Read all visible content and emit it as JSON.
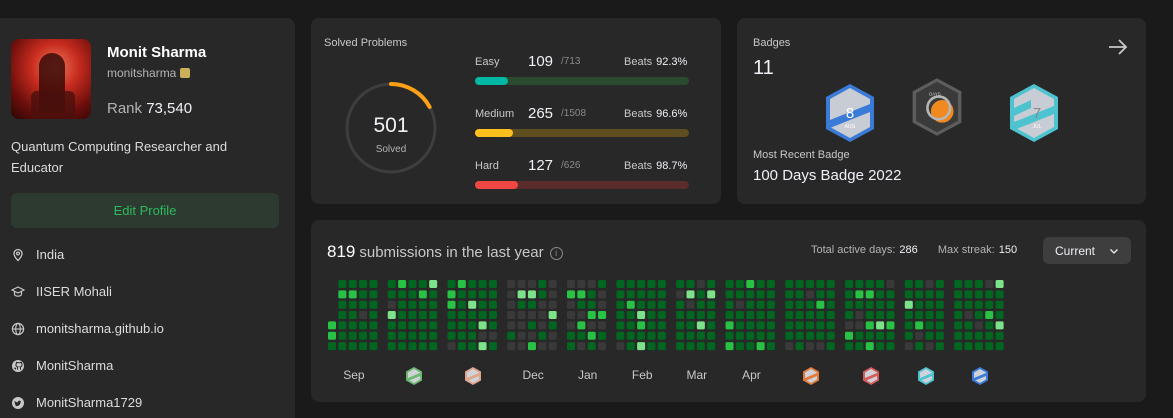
{
  "profile": {
    "name": "Monit Sharma",
    "username": "monitsharma",
    "rank_label": "Rank",
    "rank_value": "73,540",
    "bio": "Quantum Computing Researcher and Educator",
    "edit_label": "Edit Profile",
    "info": [
      {
        "icon": "location-icon",
        "text": "India"
      },
      {
        "icon": "graduation-cap-icon",
        "text": "IISER Mohali"
      },
      {
        "icon": "globe-icon",
        "text": "monitsharma.github.io"
      },
      {
        "icon": "github-icon",
        "text": "MonitSharma"
      },
      {
        "icon": "twitter-icon",
        "text": "MonitSharma1729"
      }
    ]
  },
  "solved": {
    "title": "Solved Problems",
    "total": "501",
    "total_label": "Solved",
    "progress_fraction": 0.17,
    "beats_label": "Beats",
    "levels": [
      {
        "label": "Easy",
        "solved": "109",
        "total": "/713",
        "beats": "92.3%",
        "color": "#00b8a3",
        "track": "#2a4b2f",
        "fraction": 0.153
      },
      {
        "label": "Medium",
        "solved": "265",
        "total": "/1508",
        "beats": "96.6%",
        "color": "#ffc01e",
        "track": "#5e4e20",
        "fraction": 0.176
      },
      {
        "label": "Hard",
        "solved": "127",
        "total": "/626",
        "beats": "98.7%",
        "color": "#ef4743",
        "track": "#5a2c2c",
        "fraction": 0.203
      }
    ]
  },
  "badges": {
    "title": "Badges",
    "count": "11",
    "recent_label": "Most Recent Badge",
    "recent_name": "100 Days Badge 2022",
    "items": [
      {
        "name": "aug-badge-icon",
        "number": "8",
        "text": "AUG",
        "accent": "#3b7bd8"
      },
      {
        "name": "100-days-badge-icon",
        "number": "",
        "text": "DAYS",
        "accent": "#f0891f"
      },
      {
        "name": "jul-badge-icon",
        "number": "7",
        "text": "JUL",
        "accent": "#4cc3cf"
      }
    ]
  },
  "submissions": {
    "count": "819",
    "label": "submissions in the last year",
    "active_label": "Total active days:",
    "active_value": "286",
    "streak_label": "Max streak:",
    "streak_value": "150",
    "select_value": "Current",
    "months": [
      "Sep",
      "",
      "",
      "Dec",
      "Jan",
      "Feb",
      "Mar",
      "Apr",
      "",
      "",
      "",
      ""
    ],
    "month_badges": [
      "",
      "oct-2022-badge-icon",
      "nov-2022-badge-icon",
      "",
      "",
      "",
      "",
      "",
      "may-badge-icon",
      "jun-badge-icon",
      "jul-badge-icon",
      "aug-badge-icon"
    ],
    "colors": {
      "empty": "#393939",
      "l1": "#016620",
      "l2": "#28c244",
      "l3": "#7ce38b"
    }
  }
}
